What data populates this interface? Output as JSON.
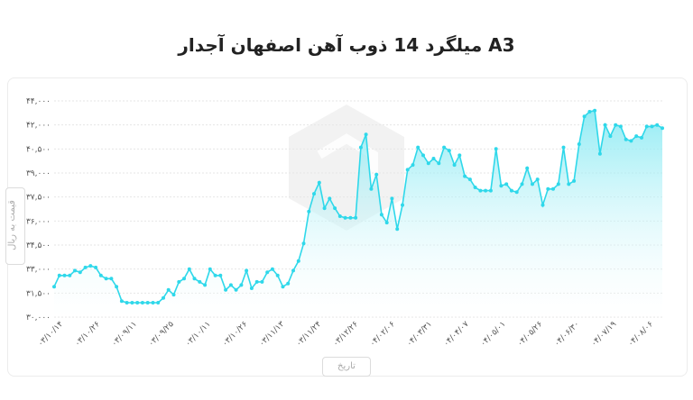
{
  "chart_data": {
    "type": "area",
    "title": "میلگرد 14 ذوب آهن اصفهان آجدار A3",
    "xlabel": "تاریخ",
    "ylabel": "قیمت به ریال",
    "ylim": [
      30000,
      44000
    ],
    "y_ticks": [
      "۳۰,۰۰۰",
      "۳۱,۵۰۰",
      "۳۳,۰۰۰",
      "۳۴,۵۰۰",
      "۳۶,۰۰۰",
      "۳۷,۵۰۰",
      "۳۹,۰۰۰",
      "۴۰,۵۰۰",
      "۴۲,۰۰۰",
      "۴۴,۰۰۰"
    ],
    "x_tick_labels": [
      "۰۳/۱۰/۱۴",
      "۰۳/۱۰/۲۶",
      "۰۳/۰۹/۱۱",
      "۰۳/۰۹/۲۵",
      "۰۳/۱۰/۱۱",
      "۰۳/۱۰/۲۶",
      "۰۳/۱۱/۱۳",
      "۰۳/۱۱/۲۴",
      "۰۳/۱۲/۲۶",
      "۰۴/۰۲/۰۶",
      "۰۴/۰۳/۳۱",
      "۰۴/۰۴/۰۷",
      "۰۴/۰۵/۰۱",
      "۰۴/۰۵/۲۶",
      "۰۴/۰۶/۳۰",
      "۰۴/۰۷/۱۹",
      "۰۴/۰۸/۰۶"
    ],
    "grid": true,
    "line_color": "#2fd8ea",
    "fill_color": "#7fe8f2",
    "values": [
      31900,
      32600,
      32600,
      32600,
      32900,
      32800,
      33100,
      33200,
      33100,
      32600,
      32400,
      32400,
      31900,
      31000,
      30900,
      30900,
      30900,
      30900,
      30900,
      30900,
      30900,
      31200,
      31700,
      31400,
      32200,
      32400,
      33000,
      32400,
      32200,
      32000,
      33000,
      32600,
      32600,
      31700,
      32000,
      31700,
      32000,
      32900,
      31800,
      32200,
      32200,
      32800,
      33000,
      32600,
      31900,
      32100,
      32900,
      33500,
      34600,
      36600,
      37700,
      38400,
      36800,
      37400,
      36800,
      36300,
      36200,
      36200,
      36200,
      40600,
      41400,
      38000,
      38900,
      36400,
      35900,
      37400,
      35500,
      37000,
      39200,
      39500,
      40600,
      40100,
      39600,
      39900,
      39600,
      40600,
      40400,
      39500,
      40100,
      38800,
      38600,
      38100,
      37900,
      37900,
      37900,
      40500,
      38200,
      38300,
      37900,
      37800,
      38300,
      39300,
      38300,
      38600,
      37000,
      38000,
      38000,
      38300,
      40600,
      38300,
      38500,
      40800,
      42700,
      43100,
      43200,
      40200,
      42000,
      41300,
      42000,
      41900,
      41100,
      41000,
      41300,
      41200,
      41900,
      41900,
      42000,
      41800
    ]
  }
}
